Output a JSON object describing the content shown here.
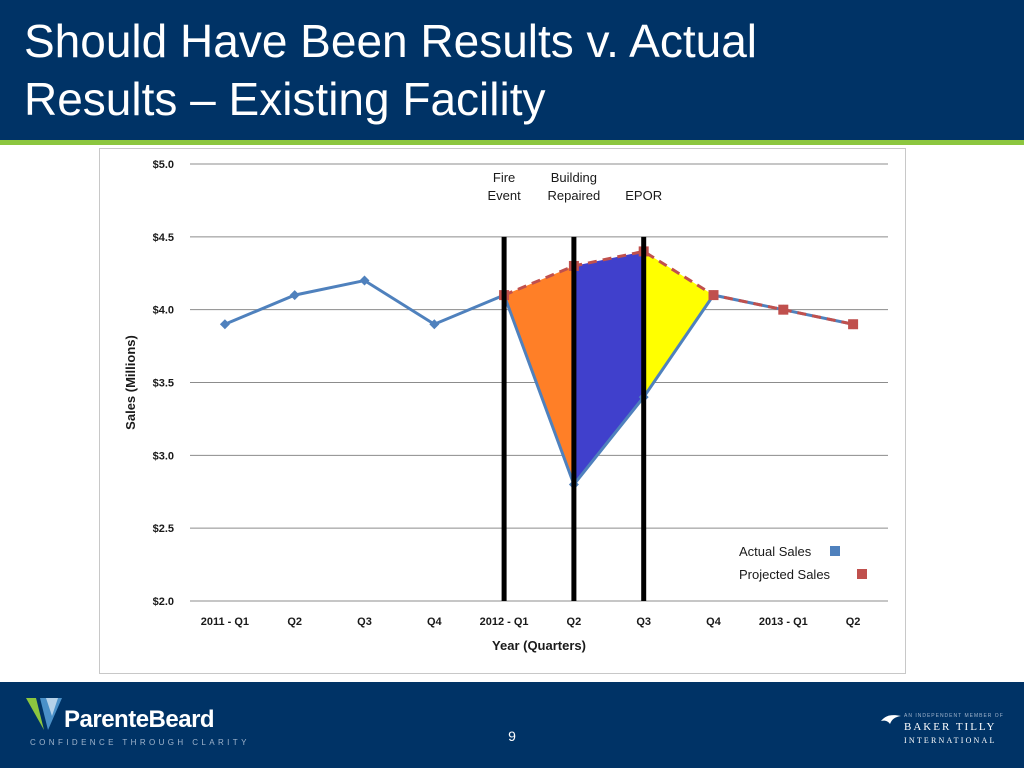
{
  "slide": {
    "title_line1": "Should Have Been Results v. Actual",
    "title_line2": "Results – Existing Facility",
    "page_number": "9"
  },
  "footer": {
    "logo_text": "ParenteBeard",
    "logo_tagline": "CONFIDENCE THROUGH CLARITY",
    "partner_small": "AN INDEPENDENT MEMBER OF",
    "partner_line1": "BAKER TILLY",
    "partner_line2": "INTERNATIONAL"
  },
  "colors": {
    "header_bg": "#003366",
    "accent_green": "#8cc63f",
    "actual_series": "#4f81bd",
    "projected_series": "#c0504d",
    "fill_fire_to_repair": "#ff7f27",
    "fill_repair_to_epor": "#4040cc",
    "fill_epor_to_recovery": "#ffff00"
  },
  "chart_data": {
    "type": "line",
    "xlabel": "Year (Quarters)",
    "ylabel": "Sales (Millions)",
    "categories": [
      "2011 - Q1",
      "Q2",
      "Q3",
      "Q4",
      "2012 - Q1",
      "Q2",
      "Q3",
      "Q4",
      "2013 - Q1",
      "Q2"
    ],
    "y_ticks": [
      "$2.0",
      "$2.5",
      "$3.0",
      "$3.5",
      "$4.0",
      "$4.5",
      "$5.0"
    ],
    "ylim": [
      2.0,
      5.0
    ],
    "grid": true,
    "legend_position": "bottom-right",
    "series": [
      {
        "name": "Actual Sales",
        "style": "solid",
        "marker": "diamond",
        "values": [
          3.9,
          4.1,
          4.2,
          3.9,
          4.1,
          2.8,
          3.4,
          4.1,
          4.0,
          3.9
        ]
      },
      {
        "name": "Projected Sales",
        "style": "dashed",
        "marker": "square",
        "values": [
          null,
          null,
          null,
          null,
          4.1,
          4.3,
          4.4,
          4.1,
          4.0,
          3.9
        ]
      }
    ],
    "events": [
      {
        "label": "Fire\nEvent",
        "x_index": 4
      },
      {
        "label": "Building\nRepaired",
        "x_index": 5
      },
      {
        "label": "EPOR",
        "x_index": 6
      }
    ]
  }
}
